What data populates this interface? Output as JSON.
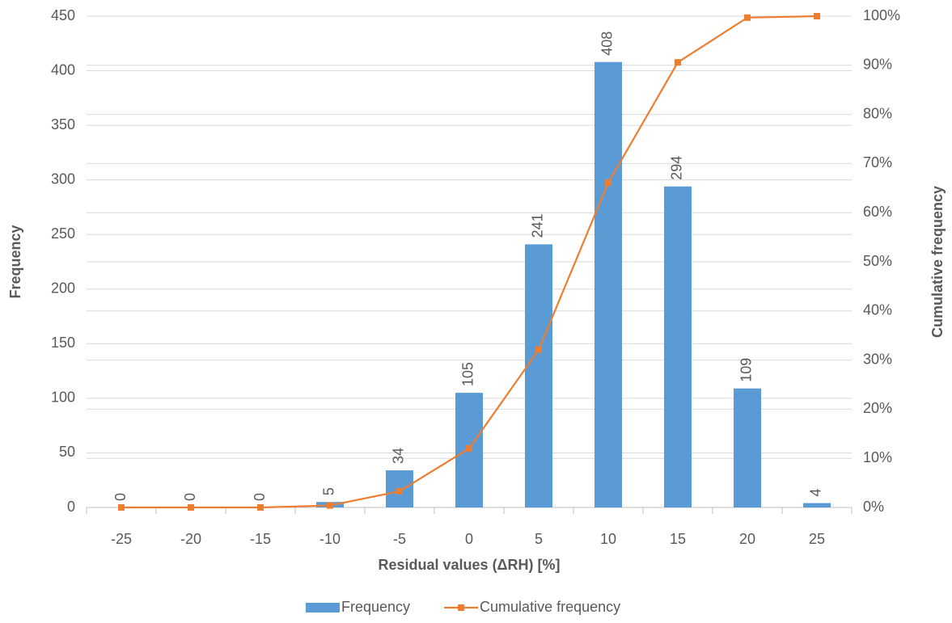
{
  "chart_data": {
    "type": "bar",
    "x_label": "Residual values (ΔRH) [%]",
    "y_label": "Frequency",
    "y2_label": "Cumulative frequency",
    "categories": [
      "-25",
      "-20",
      "-15",
      "-10",
      "-5",
      "0",
      "5",
      "10",
      "15",
      "20",
      "25"
    ],
    "series": [
      {
        "name": "Frequency",
        "type": "bar",
        "color": "#5b9bd5",
        "values": [
          0,
          0,
          0,
          5,
          34,
          105,
          241,
          408,
          294,
          109,
          4
        ],
        "data_labels": true
      },
      {
        "name": "Cumulative frequency",
        "type": "line",
        "axis": "y2",
        "color": "#ed7d31",
        "values": [
          0,
          0,
          0,
          0.4,
          3.3,
          12.0,
          32.1,
          66.1,
          90.6,
          99.7,
          100
        ]
      }
    ],
    "ylim": [
      0,
      450
    ],
    "yticks": [
      0,
      50,
      100,
      150,
      200,
      250,
      300,
      350,
      400,
      450
    ],
    "y2lim": [
      0,
      100
    ],
    "y2ticks": [
      {
        "value": 0,
        "label": "0%"
      },
      {
        "value": 10,
        "label": "10%"
      },
      {
        "value": 20,
        "label": "20%"
      },
      {
        "value": 30,
        "label": "30%"
      },
      {
        "value": 40,
        "label": "40%"
      },
      {
        "value": 50,
        "label": "50%"
      },
      {
        "value": 60,
        "label": "60%"
      },
      {
        "value": 70,
        "label": "70%"
      },
      {
        "value": 80,
        "label": "80%"
      },
      {
        "value": 90,
        "label": "90%"
      },
      {
        "value": 100,
        "label": "100%"
      }
    ],
    "grid": true,
    "legend": "bottom"
  }
}
